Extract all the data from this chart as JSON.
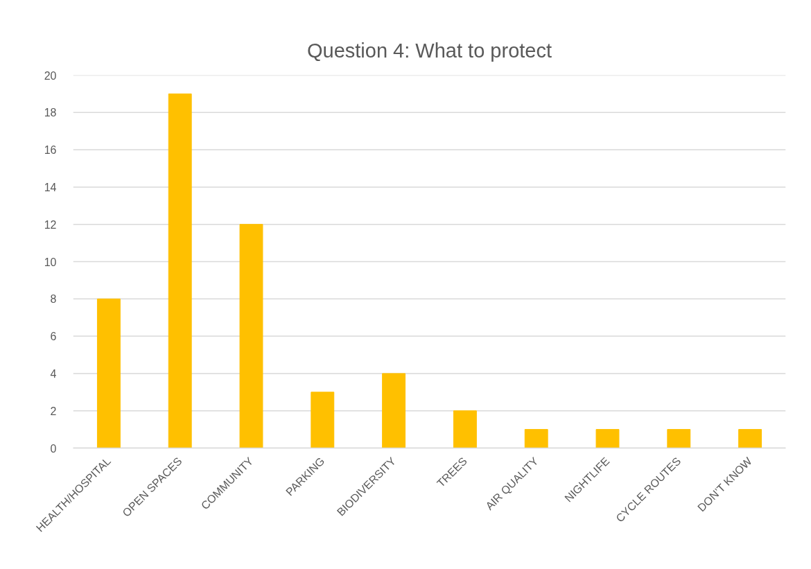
{
  "chart_data": {
    "type": "bar",
    "title": "Question 4: What to protect",
    "categories": [
      "HEALTH/HOSPITAL",
      "OPEN SPACES",
      "COMMUNITY",
      "PARKING",
      "BIODIVERSITY",
      "TREES",
      "AIR QUALITY",
      "NIGHTLIFE",
      "CYCLE ROUTES",
      "DON’T KNOW"
    ],
    "values": [
      8,
      19,
      12,
      3,
      4,
      2,
      1,
      1,
      1,
      1
    ],
    "color": "#ffc000",
    "ylim": [
      0,
      20
    ],
    "yticks": [
      0,
      2,
      4,
      6,
      8,
      10,
      12,
      14,
      16,
      18,
      20
    ],
    "grid": "y"
  }
}
